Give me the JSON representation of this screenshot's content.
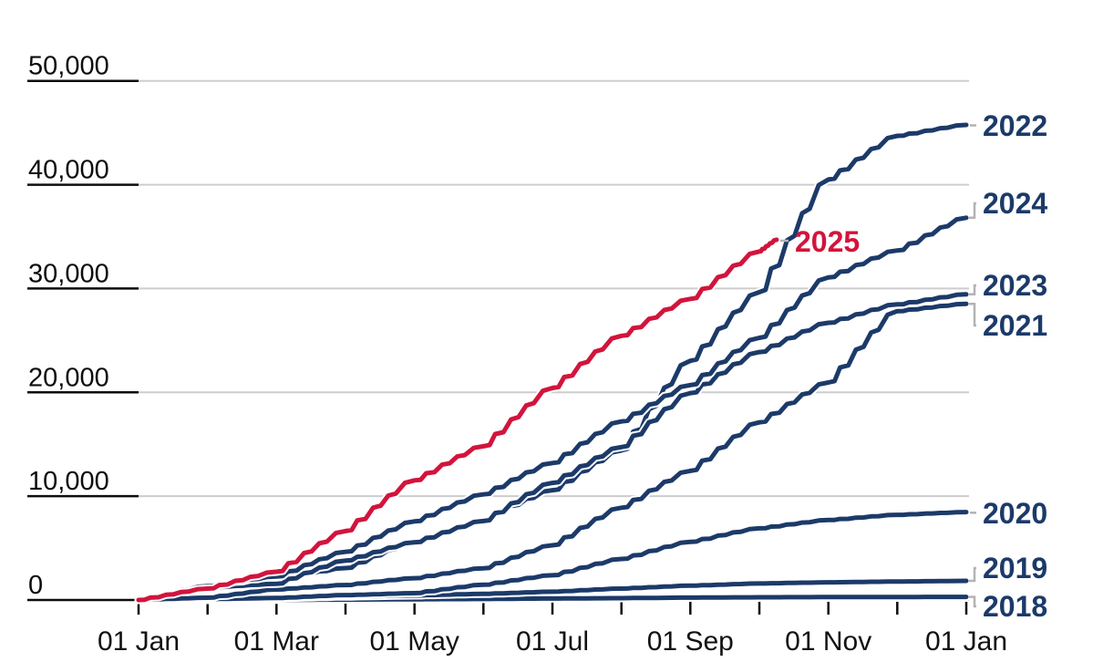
{
  "chart_data": {
    "type": "line",
    "title": "",
    "xlabel": "",
    "ylabel": "",
    "x_unit": "months since 01 Jan (0 = 01 Jan, 12 = following 01 Jan)",
    "xlim": [
      0,
      12
    ],
    "ylim": [
      0,
      50000
    ],
    "grid": "horizontal",
    "legend_position": "direct-labels-right",
    "y_ticks": {
      "values": [
        50000,
        40000,
        30000,
        20000,
        10000,
        0
      ],
      "labels": [
        "50,000",
        "40,000",
        "30,000",
        "20,000",
        "10,000",
        "0"
      ]
    },
    "x_ticks": {
      "month_positions": [
        0,
        1,
        2,
        3,
        4,
        5,
        6,
        7,
        8,
        9,
        10,
        11,
        12
      ],
      "labeled_months": [
        0,
        2,
        4,
        6,
        8,
        10,
        12
      ],
      "labels": [
        "01 Jan",
        "01 Mar",
        "01 May",
        "01 Jul",
        "01 Sep",
        "01 Nov",
        "01 Jan"
      ]
    },
    "series": [
      {
        "name": "2018",
        "color": "#1c3a69",
        "highlighted": false,
        "x": [
          0,
          1,
          2,
          3,
          4,
          5,
          6,
          7,
          8,
          9,
          10,
          11,
          12
        ],
        "values": [
          0,
          0,
          20,
          40,
          70,
          100,
          140,
          180,
          230,
          260,
          280,
          290,
          300
        ]
      },
      {
        "name": "2019",
        "color": "#1c3a69",
        "highlighted": false,
        "x": [
          0,
          1,
          2,
          3,
          4,
          5,
          6,
          7,
          8,
          9,
          10,
          11,
          12
        ],
        "values": [
          0,
          90,
          180,
          330,
          440,
          590,
          800,
          1100,
          1380,
          1590,
          1700,
          1780,
          1840
        ]
      },
      {
        "name": "2020",
        "color": "#1c3a69",
        "highlighted": false,
        "x": [
          0,
          1,
          2,
          3,
          4,
          5,
          6,
          7,
          8,
          9,
          10,
          11,
          12
        ],
        "values": [
          0,
          90,
          190,
          470,
          660,
          1470,
          2380,
          3950,
          5600,
          6900,
          7700,
          8200,
          8470
        ]
      },
      {
        "name": "2021",
        "color": "#1c3a69",
        "highlighted": false,
        "x": [
          0,
          1,
          2,
          3,
          4,
          5,
          6,
          7,
          8,
          9,
          10,
          11,
          12
        ],
        "values": [
          0,
          220,
          1010,
          1440,
          2100,
          3060,
          5270,
          8890,
          12440,
          17110,
          20950,
          27820,
          28530
        ]
      },
      {
        "name": "2022",
        "color": "#1c3a69",
        "highlighted": false,
        "x": [
          0,
          1,
          2,
          3,
          4,
          5,
          6,
          7,
          8,
          9,
          10,
          11,
          12
        ],
        "values": [
          0,
          1340,
          2020,
          3070,
          5560,
          7760,
          10570,
          14400,
          23040,
          29650,
          40500,
          44700,
          45760
        ]
      },
      {
        "name": "2023",
        "color": "#1c3a69",
        "highlighted": false,
        "x": [
          0,
          1,
          2,
          3,
          4,
          5,
          6,
          7,
          8,
          9,
          10,
          11,
          12
        ],
        "values": [
          0,
          1180,
          1560,
          3790,
          5550,
          7610,
          11280,
          14730,
          19930,
          23880,
          26700,
          28470,
          29440
        ]
      },
      {
        "name": "2024",
        "color": "#1c3a69",
        "highlighted": false,
        "x": [
          0,
          1,
          2,
          3,
          4,
          5,
          6,
          7,
          8,
          9,
          10,
          11,
          12
        ],
        "values": [
          0,
          1340,
          2260,
          4640,
          7570,
          10170,
          13190,
          17200,
          20700,
          25250,
          31070,
          33660,
          36820
        ]
      },
      {
        "name": "2025",
        "color": "#d2143c",
        "highlighted": true,
        "x": [
          0,
          1,
          2,
          3,
          4,
          5,
          6,
          7,
          8,
          9,
          9.25
        ],
        "values": [
          0,
          1100,
          2720,
          6640,
          11520,
          14810,
          20420,
          25440,
          29000,
          33570,
          34700
        ]
      }
    ]
  },
  "colors": {
    "navy": "#1c3a69",
    "red": "#d2143c",
    "grid": "#cdcdcd",
    "axis": "#0d0d0d",
    "leader": "#b3b3b3",
    "background": "#ffffff"
  }
}
